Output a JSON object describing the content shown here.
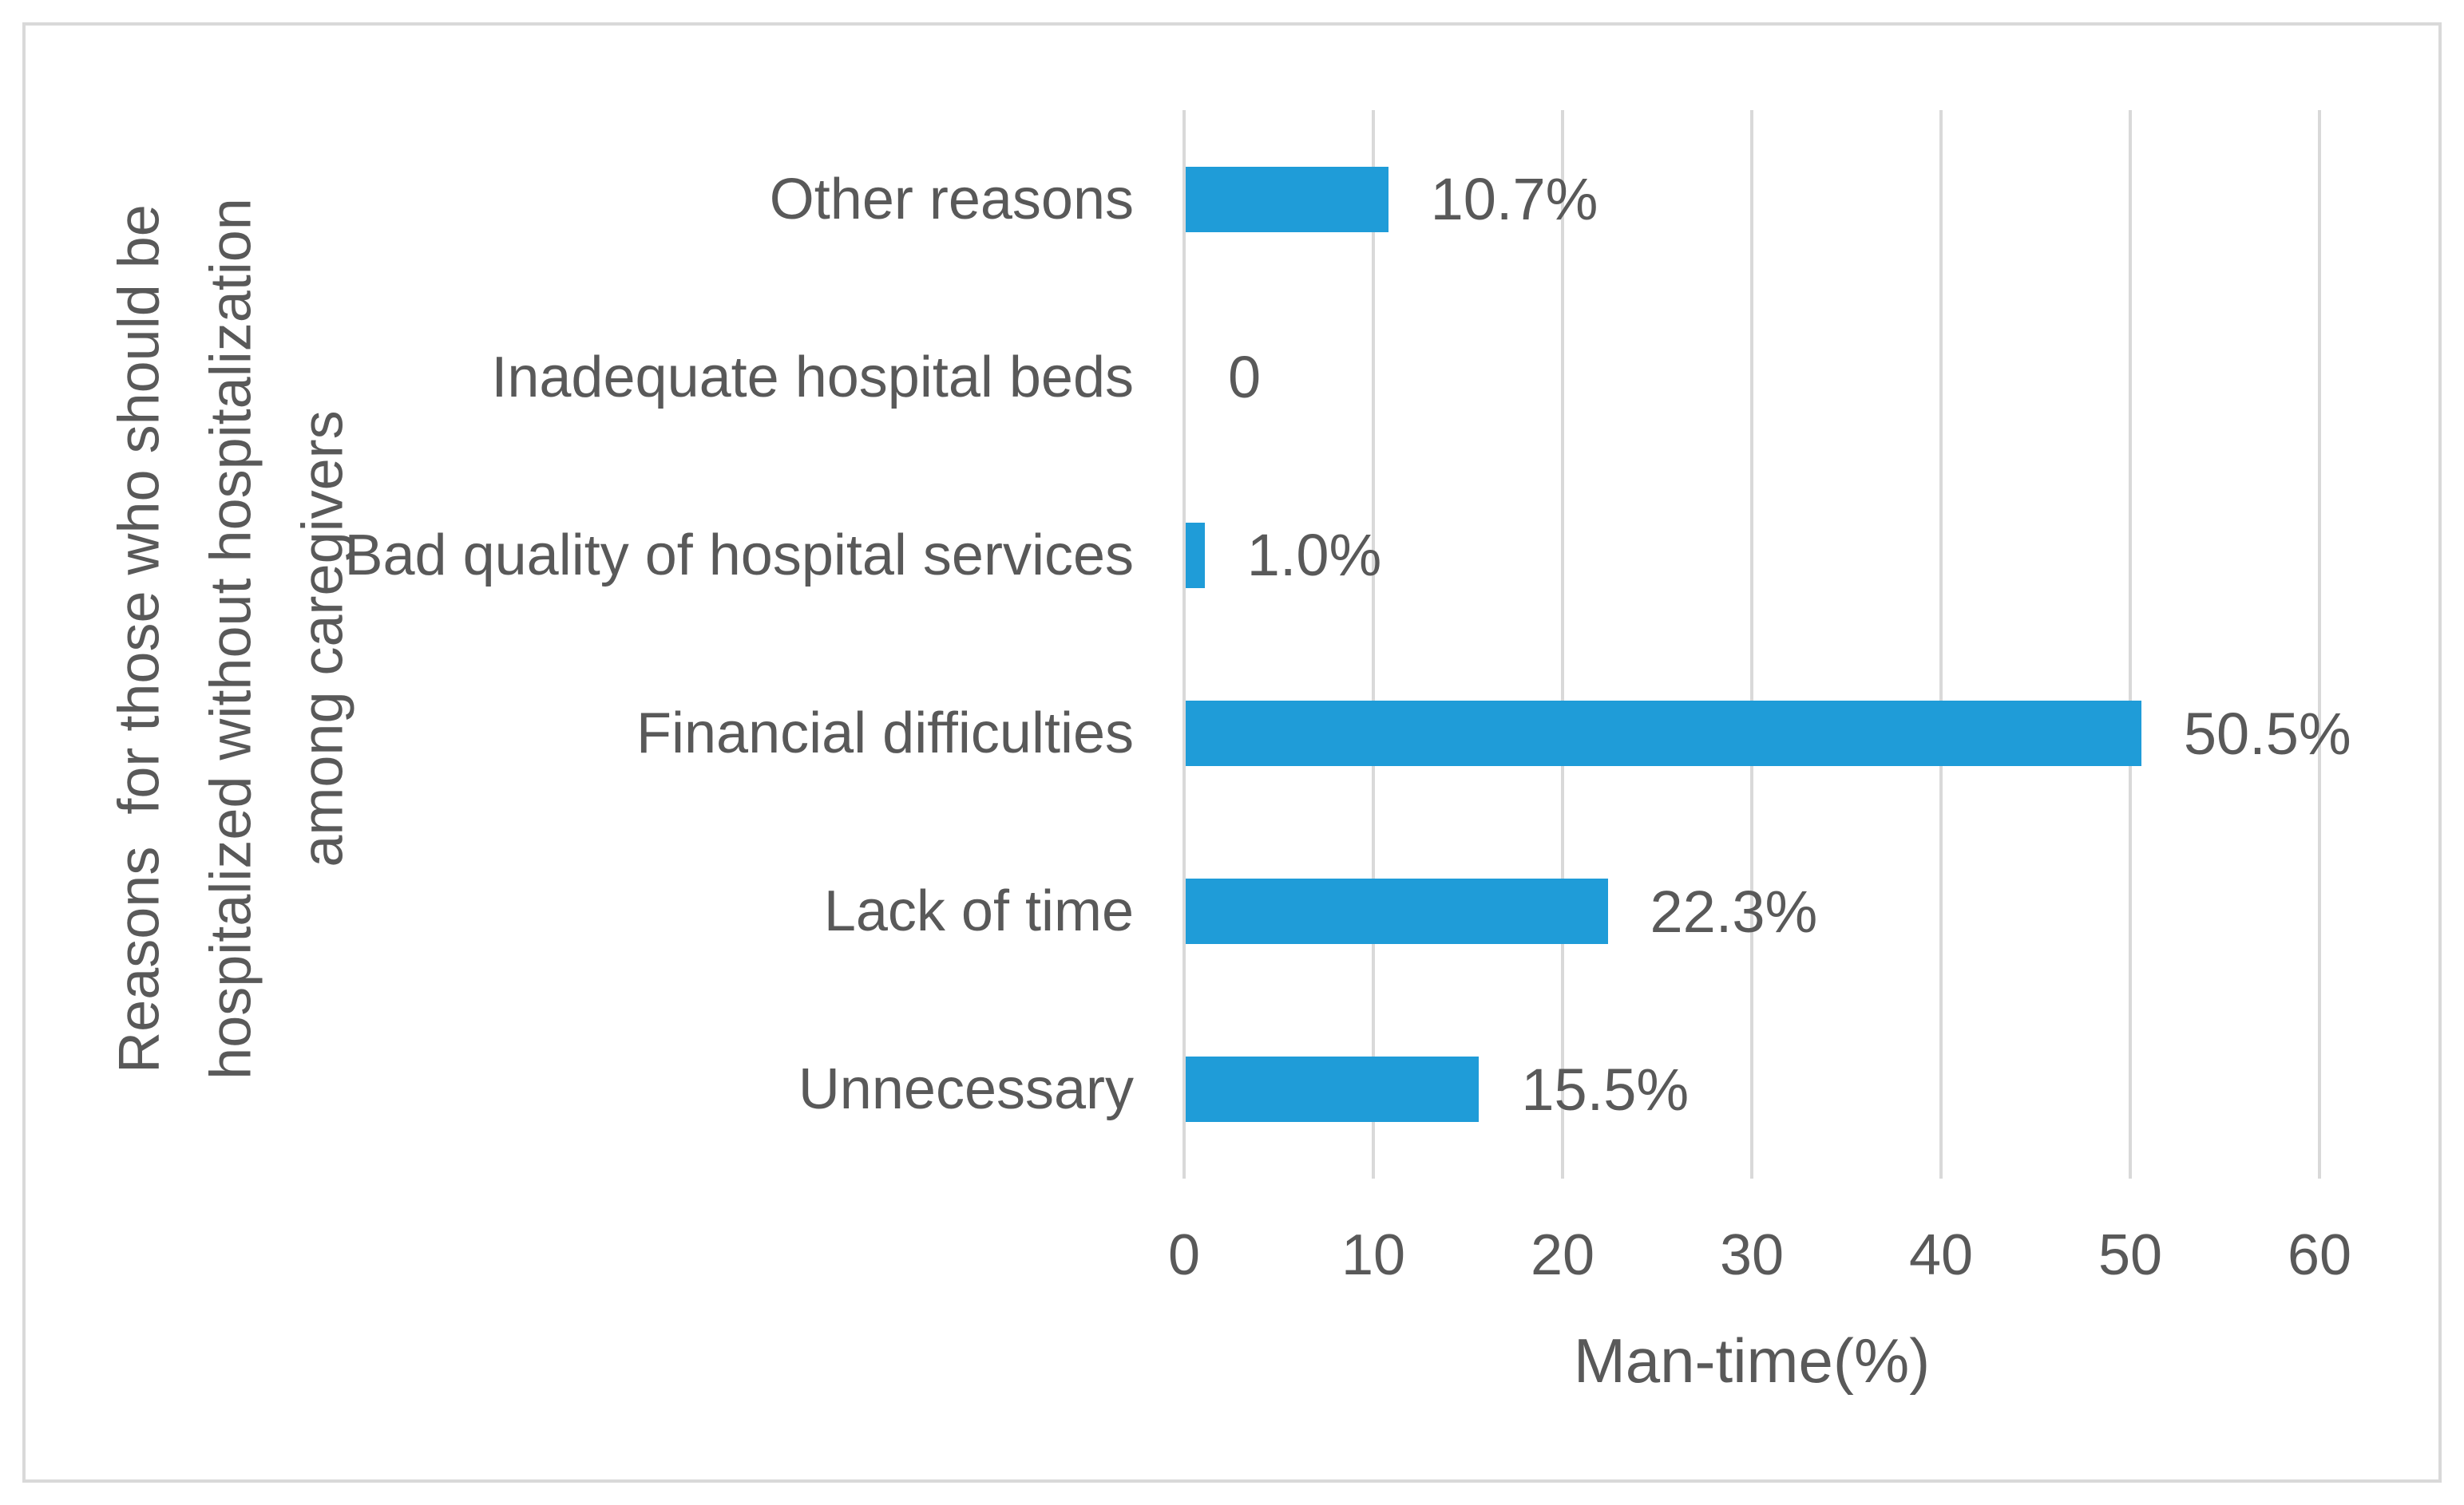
{
  "chart_data": {
    "type": "bar",
    "orientation": "horizontal",
    "title": "",
    "categories": [
      "Other reasons",
      "Inadequate hospital beds",
      "Bad quality of hospital services",
      "Financial difficulties",
      "Lack of time",
      "Unnecessary"
    ],
    "values": [
      10.7,
      0,
      1.0,
      50.5,
      22.3,
      15.5
    ],
    "data_labels": [
      "10.7%",
      "0",
      "1.0%",
      "50.5%",
      "22.3%",
      "15.5%"
    ],
    "xlabel": "Man-time(%)",
    "ylabel_lines": [
      "Reasons  for those who should be",
      "hospitalized without hospitalization",
      "among caregivers"
    ],
    "x_ticks": [
      "0",
      "10",
      "20",
      "30",
      "40",
      "50",
      "60"
    ],
    "x_tick_values": [
      0,
      10,
      20,
      30,
      40,
      50,
      60
    ],
    "xlim": [
      0,
      60
    ],
    "grid": true,
    "legend": "none",
    "colors": {
      "bar": "#1F9CD8",
      "text": "#595959",
      "gridline": "#D9D9D9",
      "border": "#D9D9D9",
      "background": "#FFFFFF"
    }
  }
}
